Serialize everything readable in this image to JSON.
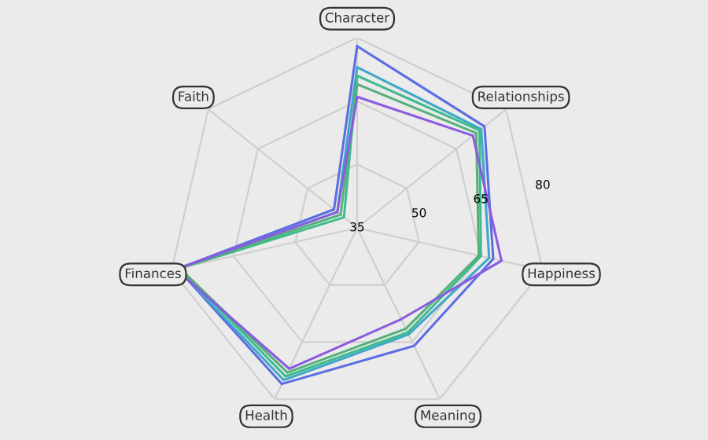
{
  "chart_data": {
    "type": "radar",
    "categories": [
      "Character",
      "Relationships",
      "Happiness",
      "Meaning",
      "Health",
      "Finances",
      "Faith"
    ],
    "ylim": [
      35,
      80
    ],
    "yticks": [
      35,
      50,
      65,
      80
    ],
    "grid": true,
    "marker": "none",
    "series": [
      {
        "color": "#5b6ee1",
        "values": [
          78,
          73.5,
          68,
          66,
          76,
          78.5,
          42
        ]
      },
      {
        "color": "#3fa7c9",
        "values": [
          73,
          72.5,
          67,
          63,
          75,
          78.5,
          41
        ]
      },
      {
        "color": "#3dbb8c",
        "values": [
          71,
          72,
          65,
          62.5,
          74,
          78,
          39
        ]
      },
      {
        "color": "#56b07a",
        "values": [
          69,
          71,
          64.5,
          61.5,
          73,
          78,
          40
        ]
      },
      {
        "color": "#8a5be0",
        "values": [
          66,
          70,
          70,
          59,
          72,
          79,
          41
        ]
      }
    ]
  }
}
